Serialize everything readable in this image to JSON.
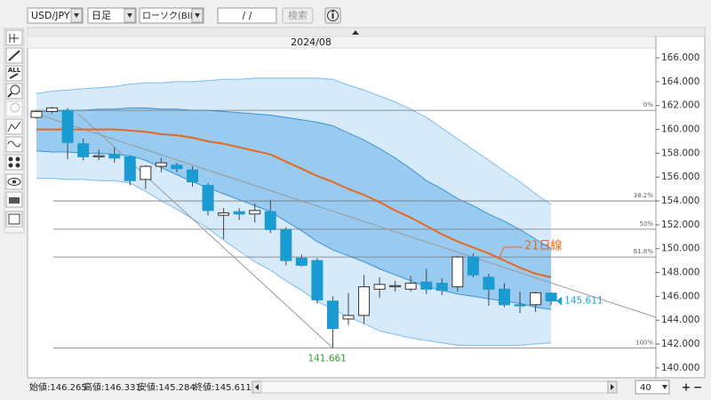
{
  "toolbar": {
    "pair": "USD/JPY",
    "period": "日足",
    "chart_type": "ローソク(BID)",
    "date": "/ /",
    "search": "検索"
  },
  "tools": {
    "all_label": "ALL"
  },
  "status": {
    "items": [
      "始値:146.265",
      "高値:146.331",
      "安値:145.284",
      "終値:145.611"
    ],
    "page_size": "40"
  },
  "chart_data": {
    "type": "candlestick",
    "x_label": "2024/08",
    "categories": [
      null,
      null,
      null,
      null,
      null,
      null,
      null,
      null,
      null,
      null,
      null,
      null,
      null,
      null,
      null,
      null,
      null,
      null,
      null,
      null,
      null,
      null,
      null,
      null,
      null,
      null,
      null,
      null,
      null,
      null,
      null,
      null,
      null,
      null
    ],
    "open": [
      161.0,
      161.5,
      161.6,
      158.8,
      157.7,
      157.9,
      157.7,
      155.8,
      156.9,
      157.0,
      156.6,
      155.3,
      152.8,
      153.1,
      152.9,
      153.1,
      151.6,
      149.2,
      149.0,
      145.6,
      144.1,
      144.4,
      146.6,
      146.8,
      146.6,
      147.2,
      147.1,
      146.8,
      149.3,
      147.6,
      146.6,
      145.3,
      145.3,
      146.265
    ],
    "high": [
      161.6,
      161.9,
      161.8,
      159.2,
      158.3,
      158.5,
      157.8,
      157.0,
      157.6,
      157.2,
      156.9,
      155.5,
      153.4,
      153.4,
      153.8,
      154.1,
      151.8,
      149.5,
      149.2,
      146.0,
      146.3,
      147.8,
      147.6,
      147.3,
      147.7,
      148.3,
      147.5,
      149.4,
      149.6,
      147.9,
      147.1,
      146.4,
      146.4,
      146.331
    ],
    "low": [
      160.9,
      161.3,
      157.5,
      157.4,
      157.4,
      157.2,
      155.3,
      155.0,
      156.4,
      156.4,
      155.2,
      152.8,
      150.8,
      152.4,
      152.2,
      151.3,
      148.6,
      148.5,
      145.4,
      141.661,
      143.6,
      143.7,
      145.9,
      146.4,
      146.4,
      146.2,
      146.1,
      146.4,
      147.6,
      145.2,
      145.1,
      144.6,
      144.7,
      145.284
    ],
    "close": [
      161.5,
      161.8,
      158.9,
      157.7,
      157.8,
      157.6,
      155.7,
      156.9,
      157.2,
      156.7,
      155.6,
      153.2,
      153.0,
      152.9,
      153.2,
      151.6,
      149.0,
      148.6,
      145.7,
      143.3,
      144.4,
      146.8,
      147.0,
      146.9,
      147.1,
      146.6,
      146.5,
      149.3,
      147.8,
      146.6,
      145.3,
      145.2,
      146.3,
      145.611
    ],
    "up_color": "#ffffff",
    "down_color": "#1a9bd1",
    "ma": {
      "label": "21日線",
      "color": "#e8671f",
      "values": [
        160.0,
        160.0,
        160.0,
        160.0,
        160.0,
        160.0,
        159.9,
        159.8,
        159.6,
        159.5,
        159.3,
        159.0,
        158.8,
        158.5,
        158.2,
        157.9,
        157.3,
        156.7,
        156.1,
        155.6,
        155.0,
        154.5,
        153.9,
        153.2,
        152.6,
        151.9,
        151.2,
        150.6,
        150.1,
        149.6,
        149.0,
        148.4,
        147.9,
        147.6
      ]
    },
    "band_2sigma": {
      "color": "#cfe6f8",
      "edge_color": "#7cbcec",
      "upper": [
        163.0,
        163.2,
        163.3,
        163.4,
        163.5,
        163.6,
        163.8,
        163.9,
        163.9,
        164.0,
        164.0,
        164.1,
        164.2,
        164.2,
        164.3,
        164.3,
        164.3,
        164.3,
        164.3,
        164.2,
        163.7,
        163.3,
        162.8,
        162.3,
        161.7,
        161.0,
        160.1,
        159.2,
        158.3,
        157.4,
        156.5,
        155.6,
        154.6,
        153.7
      ],
      "lower": [
        155.9,
        155.9,
        155.8,
        155.8,
        155.7,
        155.7,
        155.5,
        154.8,
        154.0,
        153.3,
        152.5,
        151.7,
        150.7,
        149.8,
        148.9,
        148.2,
        147.3,
        146.5,
        145.6,
        144.9,
        144.3,
        143.7,
        143.1,
        142.8,
        142.5,
        142.3,
        142.1,
        141.9,
        141.9,
        141.9,
        141.9,
        141.9,
        142.0,
        142.1
      ]
    },
    "band_1sigma": {
      "color": "#8ec5ee",
      "edge_color": "#3a93d6",
      "upper": [
        161.5,
        161.5,
        161.6,
        161.6,
        161.7,
        161.7,
        161.8,
        161.8,
        161.7,
        161.7,
        161.6,
        161.6,
        161.5,
        161.4,
        161.3,
        161.2,
        161.0,
        160.8,
        160.6,
        160.3,
        159.7,
        159.1,
        158.4,
        157.6,
        156.7,
        155.7,
        155.0,
        154.2,
        153.6,
        152.9,
        152.3,
        151.6,
        150.8,
        150.0
      ],
      "lower": [
        158.2,
        158.1,
        158.1,
        158.0,
        158.0,
        157.9,
        157.8,
        157.4,
        156.8,
        156.2,
        155.6,
        155.1,
        154.6,
        154.1,
        153.6,
        153.1,
        152.3,
        151.5,
        150.6,
        149.9,
        149.4,
        148.9,
        148.3,
        147.8,
        147.3,
        146.8,
        146.5,
        146.2,
        146.0,
        145.8,
        145.6,
        145.4,
        145.1,
        144.9
      ]
    },
    "fibonacci": [
      {
        "label": "0%",
        "value": 161.6
      },
      {
        "label": "38.2%",
        "value": 154.0
      },
      {
        "label": "50%",
        "value": 151.63
      },
      {
        "label": "61.8%",
        "value": 149.3
      },
      {
        "label": "100%",
        "value": 141.661
      }
    ],
    "ylim": [
      139.32,
      166.75
    ],
    "yticks": [
      {
        "value": 140,
        "label": "140.000"
      },
      {
        "value": 142,
        "label": "142.000"
      },
      {
        "value": 144,
        "label": "144.000"
      },
      {
        "value": 146,
        "label": "146.000"
      },
      {
        "value": 148,
        "label": "148.000"
      },
      {
        "value": 150,
        "label": "150.000"
      },
      {
        "value": 152,
        "label": "152.000"
      },
      {
        "value": 154,
        "label": "154.000"
      },
      {
        "value": 156,
        "label": "156.000"
      },
      {
        "value": 158,
        "label": "158.000"
      },
      {
        "value": 160,
        "label": "160.000"
      },
      {
        "value": 162,
        "label": "162.000"
      },
      {
        "value": 164,
        "label": "164.000"
      },
      {
        "value": 166,
        "label": "166.000"
      }
    ]
  }
}
